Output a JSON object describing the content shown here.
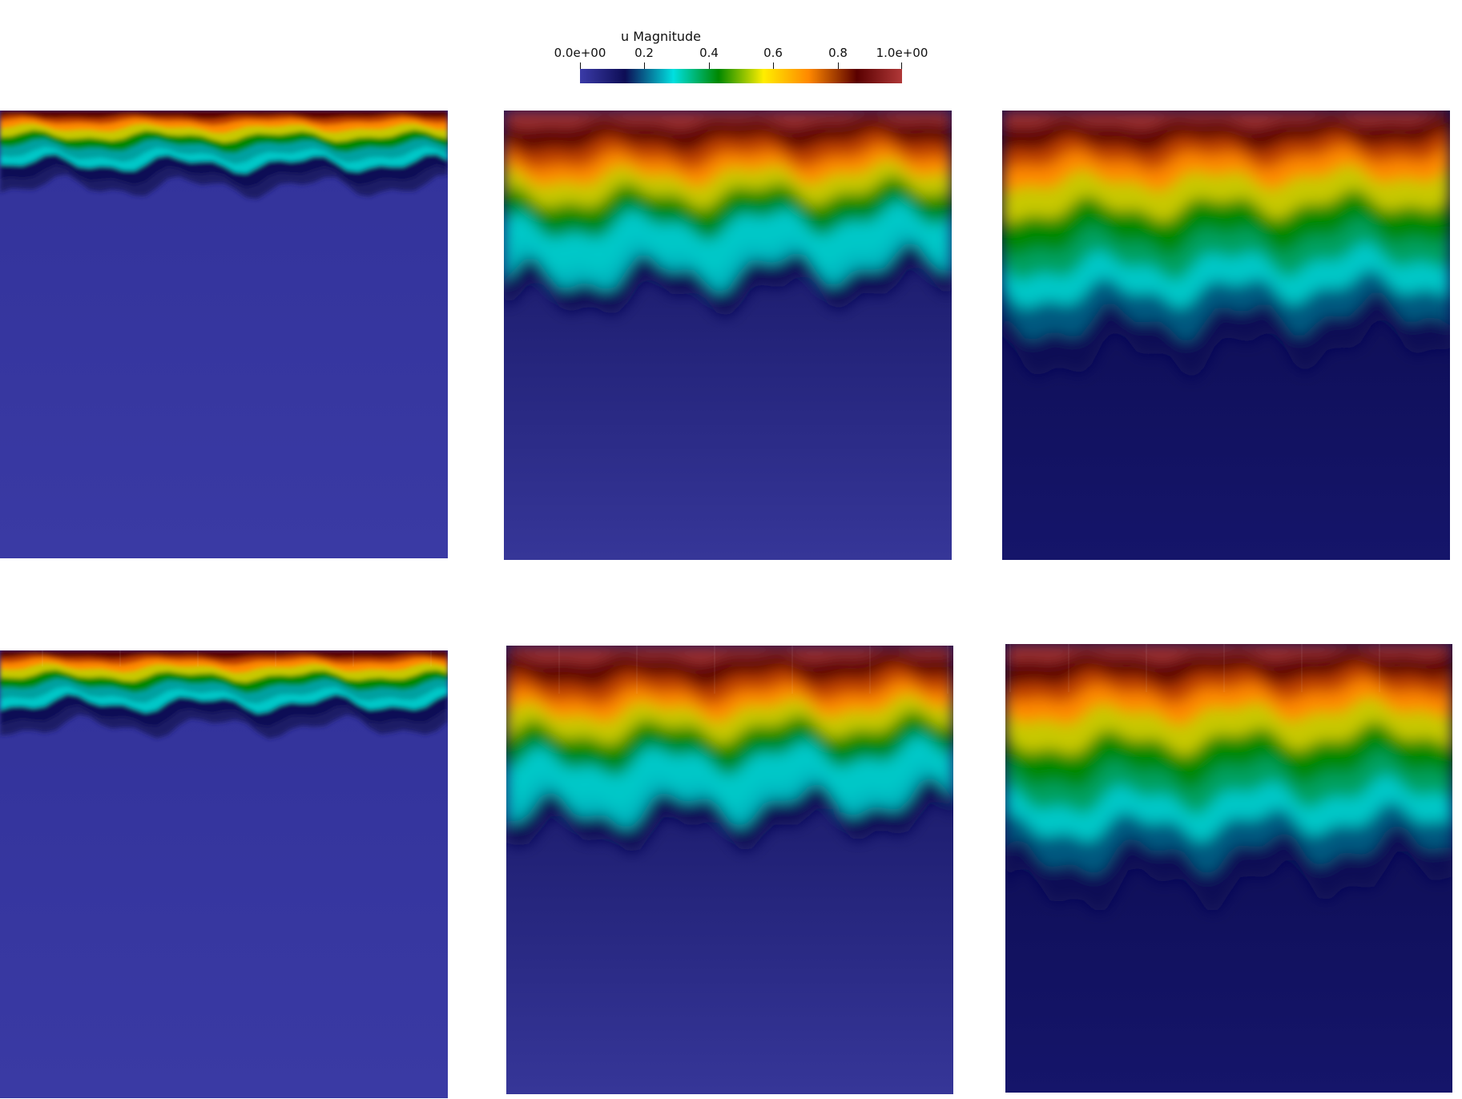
{
  "colorbar": {
    "title": "u Magnitude",
    "ticks": [
      "0.0e+00",
      "0.2",
      "0.4",
      "0.6",
      "0.8",
      "1.0e+00"
    ],
    "tick_values": [
      0.0,
      0.2,
      0.4,
      0.6,
      0.8,
      1.0
    ],
    "range": [
      0.0,
      1.0
    ],
    "colors": [
      "#3b3ba8",
      "#0d0d55",
      "#00e0e0",
      "#008800",
      "#ffee00",
      "#ff8800",
      "#5a0000",
      "#b03838"
    ]
  },
  "panels": [
    {
      "id": "r1c1",
      "front": "early",
      "noisy": false
    },
    {
      "id": "r1c2",
      "front": "mid",
      "noisy": false
    },
    {
      "id": "r1c3",
      "front": "late",
      "noisy": false
    },
    {
      "id": "r2c1",
      "front": "early",
      "noisy": true
    },
    {
      "id": "r2c2",
      "front": "mid",
      "noisy": true
    },
    {
      "id": "r2c3",
      "front": "late",
      "noisy": true
    }
  ]
}
